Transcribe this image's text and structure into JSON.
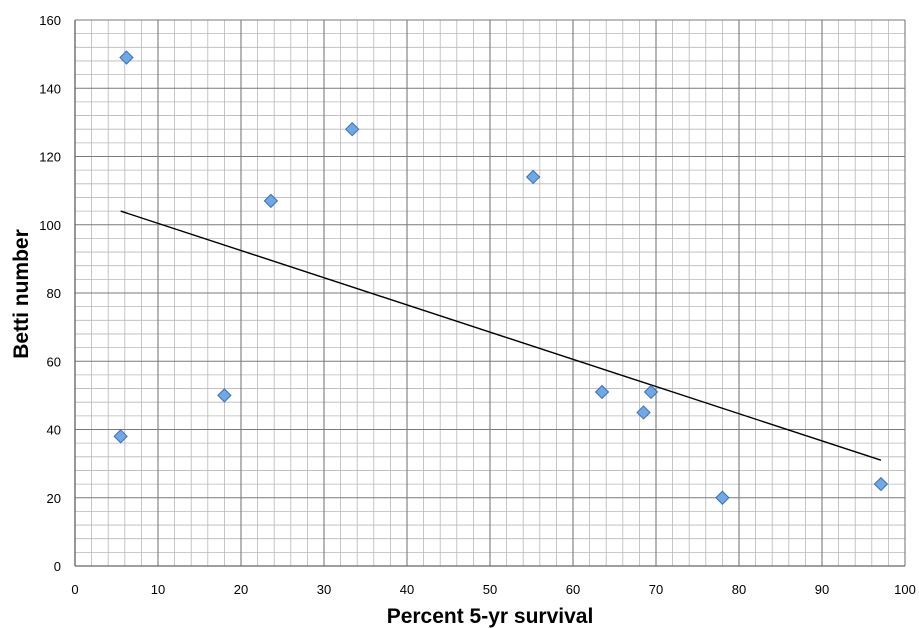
{
  "chart_data": {
    "type": "scatter",
    "title": "",
    "xlabel": "Percent 5-yr survival",
    "ylabel": "Betti number",
    "xlim": [
      0,
      100
    ],
    "ylim": [
      0,
      160
    ],
    "x_ticks": [
      0,
      10,
      20,
      30,
      40,
      50,
      60,
      70,
      80,
      90,
      100
    ],
    "y_ticks": [
      0,
      20,
      40,
      60,
      80,
      100,
      120,
      140,
      160
    ],
    "grid": "major and minor",
    "legend": "none",
    "marker": "diamond",
    "marker_color": "#6fa8e6",
    "series": [
      {
        "points": [
          {
            "x": 5.5,
            "y": 38
          },
          {
            "x": 6.2,
            "y": 149
          },
          {
            "x": 18,
            "y": 50
          },
          {
            "x": 23.6,
            "y": 107
          },
          {
            "x": 33.4,
            "y": 128
          },
          {
            "x": 55.2,
            "y": 114
          },
          {
            "x": 63.5,
            "y": 51
          },
          {
            "x": 68.5,
            "y": 45
          },
          {
            "x": 69.4,
            "y": 51
          },
          {
            "x": 78,
            "y": 20
          },
          {
            "x": 97.1,
            "y": 24
          }
        ]
      }
    ],
    "trendline": {
      "type": "linear",
      "from": {
        "x": 5.5,
        "y": 104
      },
      "to": {
        "x": 97.1,
        "y": 31
      },
      "color": "#000000"
    }
  }
}
